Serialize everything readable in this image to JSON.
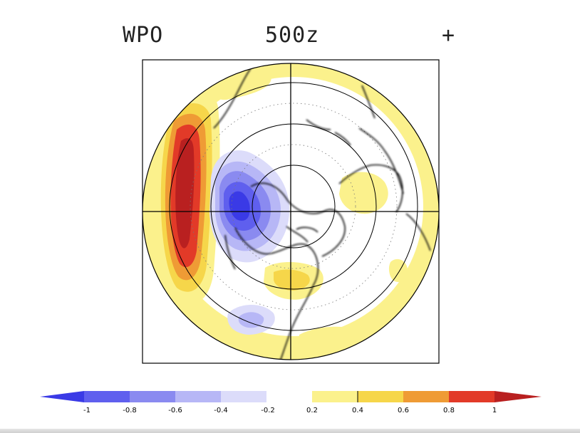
{
  "header": {
    "index_label": "WPO",
    "field_label": "500z",
    "phase_label": "+"
  },
  "colors": {
    "neg_1": "#3a3ae6",
    "neg_08": "#5f5fee",
    "neg_06": "#8a8af0",
    "neg_04": "#b7b7f6",
    "neg_02": "#dcdcfa",
    "pos_02": "#fbf18c",
    "pos_04": "#f6d64a",
    "pos_06": "#ef9b35",
    "pos_08": "#e23a28",
    "pos_1": "#b92020"
  },
  "colorbar": {
    "labels": [
      "-1",
      "-0.8",
      "-0.6",
      "-0.4",
      "-0.2",
      "0.2",
      "0.4",
      "0.6",
      "0.8",
      "1"
    ]
  }
}
